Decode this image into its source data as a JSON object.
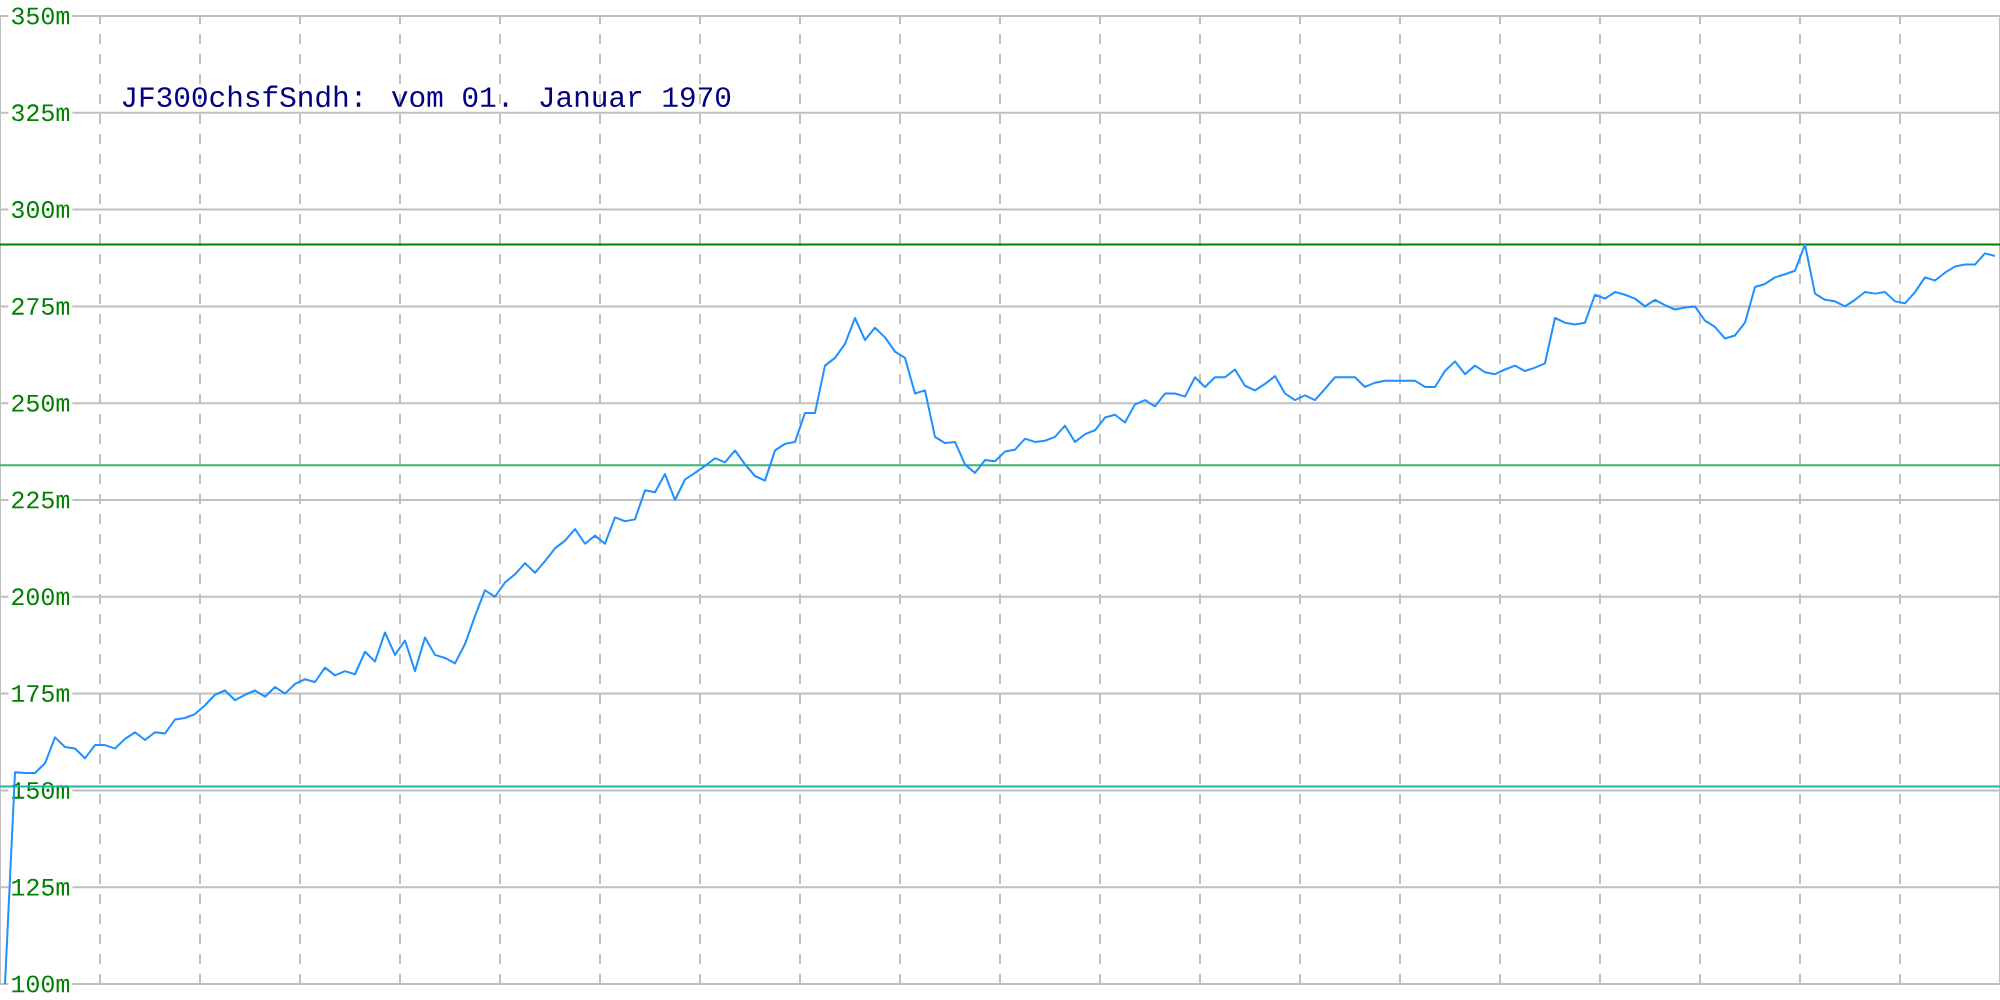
{
  "chart_data": {
    "type": "line",
    "title": "JF300chsfSndh: vom 01. Januar 1970",
    "categories": [
      null,
      null,
      null,
      null,
      null,
      null,
      null,
      null,
      null,
      null,
      null,
      null,
      null,
      null,
      null,
      null,
      null,
      null,
      null,
      null,
      null,
      null,
      null,
      null,
      null,
      null,
      null,
      null,
      null,
      null,
      null,
      null,
      null,
      null,
      null,
      null,
      null,
      null,
      null,
      null,
      null,
      null,
      null,
      null,
      null,
      null,
      null,
      null,
      null,
      null,
      null,
      null,
      null,
      null,
      null,
      null,
      null,
      null,
      null,
      null,
      null,
      null,
      null,
      null,
      null,
      null,
      null,
      null,
      null,
      null,
      null,
      null,
      null,
      null,
      null,
      null,
      null,
      null,
      null,
      null,
      null,
      null,
      null,
      null,
      null,
      null,
      null,
      null,
      null,
      null,
      null,
      null,
      null,
      null,
      null,
      null,
      null,
      null,
      null,
      null,
      null,
      null,
      null,
      null,
      null,
      null,
      null,
      null,
      null,
      null,
      null,
      null,
      null,
      null,
      null,
      null,
      null,
      null,
      null,
      null,
      null,
      null,
      null,
      null,
      null,
      null,
      null,
      null,
      null,
      null,
      null,
      null,
      null,
      null,
      null,
      null,
      null,
      null,
      null,
      null,
      null,
      null,
      null,
      null,
      null,
      null,
      null,
      null,
      null,
      null,
      null,
      null,
      null,
      null,
      null,
      null,
      null,
      null,
      null,
      null,
      null,
      null,
      null,
      null,
      null,
      null,
      null,
      null,
      null,
      null,
      null,
      null,
      null,
      null,
      null,
      null,
      null,
      null,
      null,
      null,
      null,
      null,
      null,
      null,
      null,
      null,
      null,
      null,
      null,
      null,
      null,
      null,
      null,
      null,
      null,
      null,
      null,
      null,
      null,
      null
    ],
    "series": [
      {
        "color": "#1e90ff",
        "values": [
          100,
          154.7,
          154.5,
          154.5,
          157,
          163.7,
          161.2,
          160.8,
          158.3,
          161.7,
          161.7,
          160.8,
          163.3,
          165,
          163,
          165,
          164.7,
          168.3,
          168.7,
          169.7,
          172,
          174.7,
          175.8,
          173.3,
          174.7,
          175.8,
          174.2,
          176.7,
          175,
          177.5,
          178.7,
          178,
          181.7,
          179.7,
          180.8,
          180,
          185.8,
          183.3,
          190.8,
          185,
          188.7,
          180.8,
          189.5,
          185,
          184.2,
          182.8,
          187.8,
          195,
          201.7,
          200,
          203.7,
          205.8,
          208.7,
          206.2,
          209.2,
          212.5,
          214.5,
          217.5,
          213.7,
          215.8,
          213.7,
          220.5,
          219.5,
          220,
          227.5,
          227,
          231.7,
          225,
          230.3,
          232,
          233.8,
          235.8,
          234.7,
          237.8,
          234.2,
          231.2,
          230,
          237.8,
          239.5,
          240,
          247.5,
          247.5,
          259.7,
          261.7,
          265.3,
          272,
          266.3,
          269.5,
          267,
          263.3,
          261.7,
          252.5,
          253.3,
          241.3,
          239.7,
          240,
          234.2,
          232,
          235.3,
          235,
          237.5,
          238,
          240.8,
          240,
          240.3,
          241.3,
          244.2,
          240,
          242,
          243,
          246.3,
          247,
          245,
          249.7,
          250.8,
          249.2,
          252.5,
          252.5,
          251.7,
          256.7,
          254.2,
          256.7,
          256.7,
          258.7,
          254.5,
          253.3,
          255,
          257,
          252.5,
          250.8,
          252,
          250.8,
          253.7,
          256.7,
          256.7,
          256.7,
          254.2,
          255.3,
          255.8,
          255.8,
          255.8,
          255.8,
          254.2,
          254.2,
          258.3,
          260.8,
          257.5,
          259.7,
          258,
          257.5,
          258.7,
          259.7,
          258.3,
          259.2,
          260.3,
          272,
          270.8,
          270.3,
          270.8,
          278,
          277,
          278.7,
          278,
          277,
          275,
          276.7,
          275.3,
          274.2,
          274.7,
          275,
          271.3,
          269.7,
          266.7,
          267.5,
          270.8,
          280,
          280.8,
          282.5,
          283.3,
          284.2,
          291,
          278.3,
          276.7,
          276.3,
          275,
          276.7,
          278.7,
          278.3,
          278.7,
          276.3,
          275.8,
          278.7,
          282.5,
          281.7,
          283.7,
          285.3,
          285.8,
          285.8,
          288.7,
          288
        ]
      }
    ],
    "ylim": [
      100,
      350
    ],
    "yticks": [
      {
        "value": 100,
        "label": "100m"
      },
      {
        "value": 125,
        "label": "125m"
      },
      {
        "value": 150,
        "label": "150m"
      },
      {
        "value": 175,
        "label": "175m"
      },
      {
        "value": 200,
        "label": "200m"
      },
      {
        "value": 225,
        "label": "225m"
      },
      {
        "value": 250,
        "label": "250m"
      },
      {
        "value": 275,
        "label": "275m"
      },
      {
        "value": 300,
        "label": "300m"
      },
      {
        "value": 325,
        "label": "325m"
      },
      {
        "value": 350,
        "label": "350m"
      }
    ],
    "grid": true,
    "ref_lines": [
      {
        "axis": "y",
        "value": 291,
        "color": "#008000"
      },
      {
        "axis": "y",
        "value": 234,
        "color": "#3cb371"
      },
      {
        "axis": "y",
        "value": 151,
        "color": "#20b2aa"
      }
    ]
  }
}
